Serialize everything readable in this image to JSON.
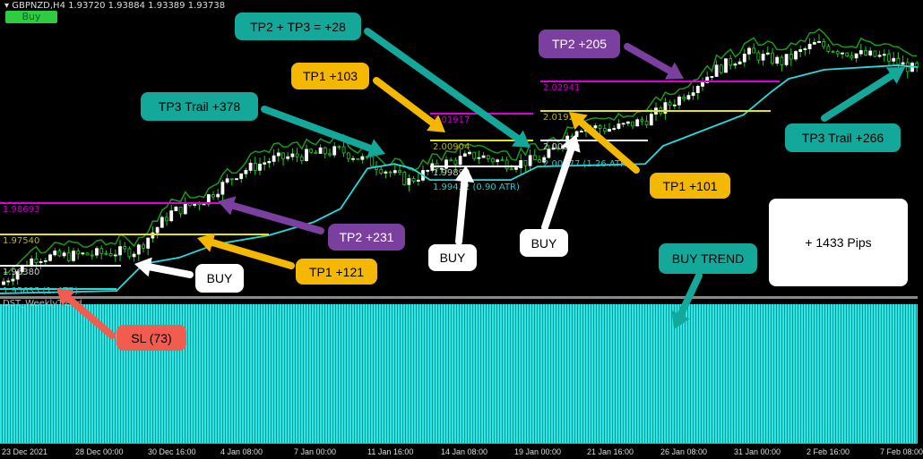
{
  "header": {
    "symbol_info": "GBPNZD,H4  1.93720 1.93884 1.93389 1.93738",
    "buy_label": "Buy"
  },
  "subwindow": {
    "label": "DST_WeeklyTrend"
  },
  "colors": {
    "background": "#000000",
    "candle_up": "#ffffff",
    "candle_down": "#22cc22",
    "trail": "#22dddd",
    "envelope": "#1a9a1a",
    "tp1": "#e6e600",
    "tp2": "#dd00dd",
    "entry": "#ffffff",
    "teal": "#14a89a",
    "orange": "#f5b800",
    "purple": "#7b3fa0",
    "salmon": "#f25c4f"
  },
  "chart_data": {
    "type": "candlestick",
    "symbol": "GBPNZD",
    "timeframe": "H4",
    "x_ticks": [
      "23 Dec 2021",
      "28 Dec 00:00",
      "30 Dec 16:00",
      "4 Jan 08:00",
      "7 Jan 00:00",
      "11 Jan 16:00",
      "14 Jan 08:00",
      "19 Jan 00:00",
      "21 Jan 16:00",
      "26 Jan 08:00",
      "31 Jan 00:00",
      "2 Feb 16:00",
      "7 Feb 08:00"
    ],
    "ylim": [
      1.9548,
      2.0532
    ],
    "approx_closes": [
      1.9585,
      1.9679,
      1.9685,
      1.9694,
      1.9703,
      1.9834,
      1.9881,
      1.9975,
      2.0022,
      2.0037,
      2.0053,
      2.0006,
      1.9944,
      2.0006,
      2.0037,
      2.0006,
      2.0022,
      2.0137,
      2.0128,
      2.0159,
      2.0237,
      2.0331,
      2.0393,
      2.0362,
      2.0425,
      2.0393,
      2.0378,
      2.0331
    ],
    "trail_stop": [
      1.9554,
      1.9563,
      1.9657,
      1.9679,
      1.9725,
      1.9757,
      1.9803,
      1.985,
      1.999,
      2.0006,
      1.999,
      1.995,
      1.995,
      1.9997,
      2.0006,
      2.0069,
      2.0178,
      2.0256,
      2.0303,
      2.0335,
      2.035,
      2.0344
    ],
    "levels": [
      {
        "label": "1.98693",
        "kind": "tp2"
      },
      {
        "label": "1.97540",
        "kind": "tp1"
      },
      {
        "label": "1.96380",
        "kind": "entry"
      },
      {
        "label": "1.95635 (1.   ATR)",
        "kind": "stop"
      },
      {
        "label": "2.01917",
        "kind": "tp2"
      },
      {
        "label": "2.00904",
        "kind": "tp1"
      },
      {
        "label": "1.99890",
        "kind": "entry"
      },
      {
        "label": "1.99432 (0.90 ATR)",
        "kind": "stop"
      },
      {
        "label": "2.02941",
        "kind": "tp2"
      },
      {
        "label": "2.01925",
        "kind": "tp1"
      },
      {
        "label": "2.00809",
        "kind": "entry"
      },
      {
        "label": "2.00277 (1.26 ATR)",
        "kind": "stop"
      }
    ]
  },
  "annotations": [
    {
      "text": "TP2 + TP3 = +28",
      "color": "teal"
    },
    {
      "text": "TP1 +103",
      "color": "orange"
    },
    {
      "text": "TP3 Trail +378",
      "color": "teal"
    },
    {
      "text": "TP2 +205",
      "color": "purple"
    },
    {
      "text": "TP1 +101",
      "color": "orange"
    },
    {
      "text": "TP3 Trail +266",
      "color": "teal"
    },
    {
      "text": "TP2 +231",
      "color": "purple"
    },
    {
      "text": "TP1 +121",
      "color": "orange"
    },
    {
      "text": "BUY",
      "color": "white"
    },
    {
      "text": "BUY",
      "color": "white"
    },
    {
      "text": "BUY",
      "color": "white"
    },
    {
      "text": "BUY TREND",
      "color": "teal"
    },
    {
      "text": "SL (73)",
      "color": "salmon"
    },
    {
      "text": "+ 1433 Pips",
      "color": "white"
    }
  ]
}
